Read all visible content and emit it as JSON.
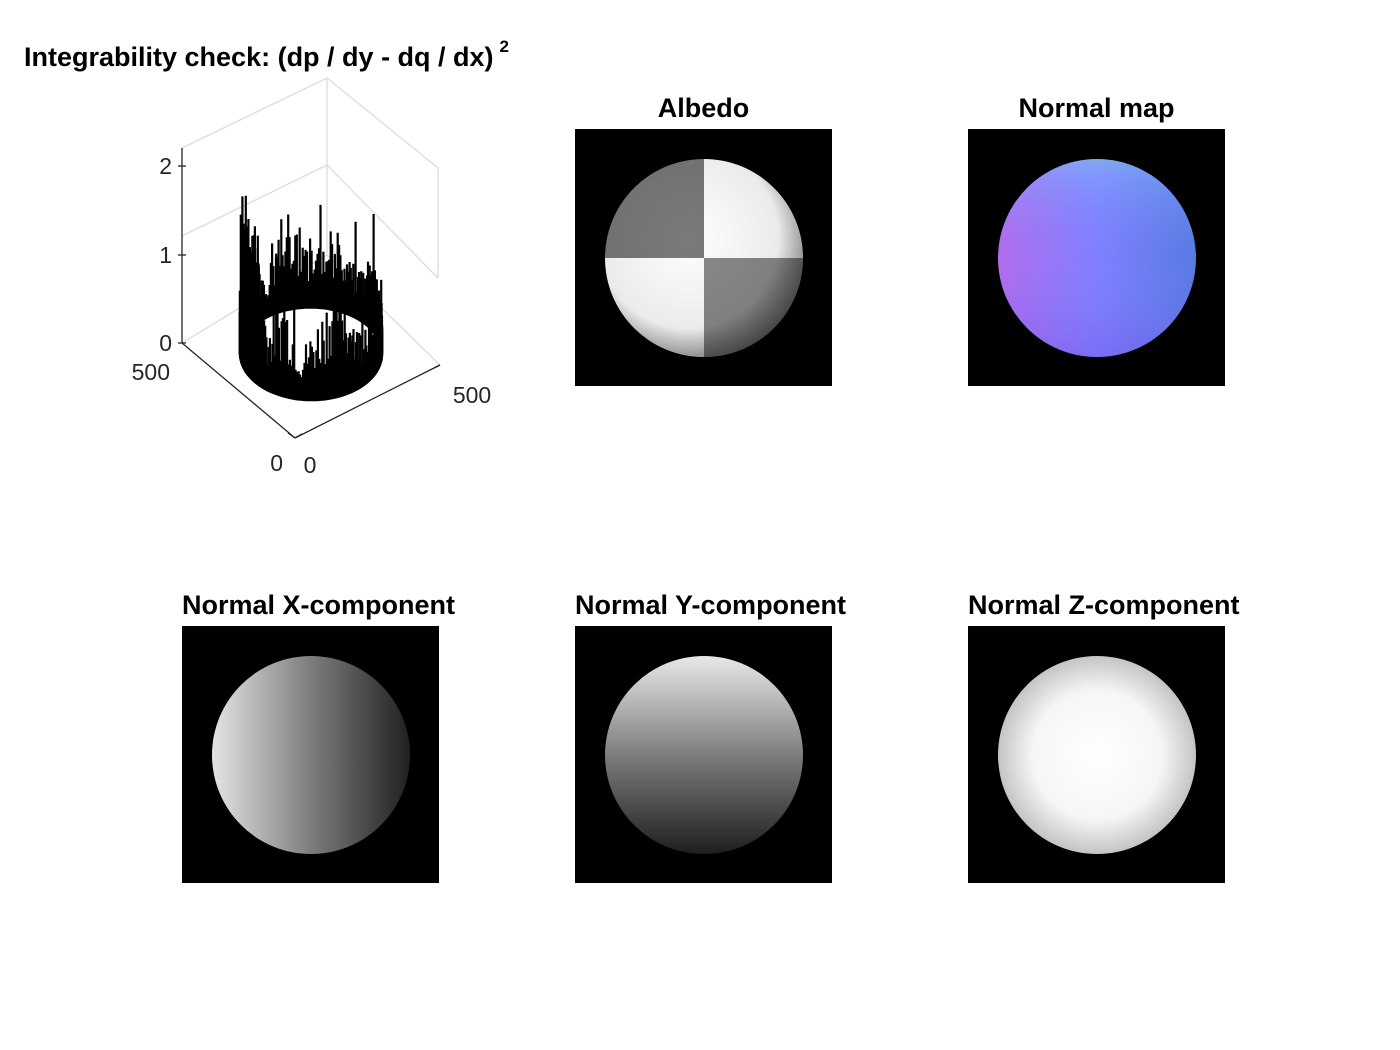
{
  "chart_data": [
    {
      "type": "surface3d",
      "title": "Integrability check: (dp / dy - dq / dx)",
      "title_superscript": "2",
      "xlim": [
        0,
        512
      ],
      "ylim": [
        0,
        512
      ],
      "zlim": [
        0,
        2.2
      ],
      "xticks": [
        "0",
        "500"
      ],
      "yticks": [
        "0",
        "500"
      ],
      "zticks": [
        "0",
        "1",
        "2"
      ],
      "ring_center": [
        256,
        256
      ],
      "ring_radius": 198,
      "peak_values": [
        0.85,
        0.6,
        1.05,
        0.7,
        0.95,
        1.3,
        0.55,
        0.8,
        1.1,
        0.65,
        0.9,
        2.05,
        1.9,
        0.75,
        1.2,
        0.6,
        1.0,
        1.6,
        0.7,
        0.85,
        0.5,
        0.65,
        0.45,
        0.7
      ],
      "grid": true
    },
    {
      "type": "image",
      "title": "Albedo",
      "content": "checkerboard-sphere"
    },
    {
      "type": "image",
      "title": "Normal map",
      "content": "rgb-normal-sphere"
    },
    {
      "type": "image",
      "title": "Normal X-component",
      "content": "x-gradient-sphere"
    },
    {
      "type": "image",
      "title": "Normal Y-component",
      "content": "y-gradient-sphere"
    },
    {
      "type": "image",
      "title": "Normal Z-component",
      "content": "z-sphere"
    }
  ]
}
